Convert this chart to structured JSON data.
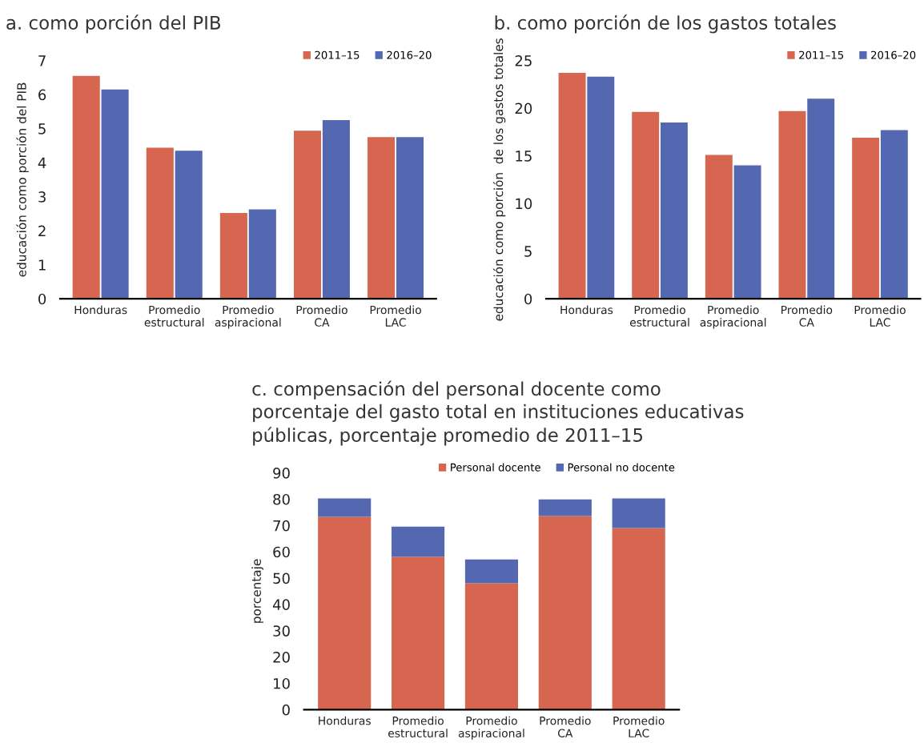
{
  "chart_data": [
    {
      "type": "bar",
      "title": "a. como porción del PIB",
      "ylabel": "educación como porción del PIB",
      "categories": [
        "Honduras",
        "Promedio\nestructural",
        "Promedio\naspiracional",
        "Promedio\nCA",
        "Promedio\nLAC"
      ],
      "series": [
        {
          "name": "2011–15",
          "color": "#d6664f",
          "values": [
            6.55,
            4.44,
            2.52,
            4.94,
            4.75
          ]
        },
        {
          "name": "2016–20",
          "color": "#5368b0",
          "values": [
            6.15,
            4.35,
            2.63,
            5.25,
            4.75
          ]
        }
      ],
      "ylim": [
        0,
        7
      ],
      "yticks": [
        0,
        1,
        2,
        3,
        4,
        5,
        6,
        7
      ],
      "grid": false,
      "legend": "top right"
    },
    {
      "type": "bar",
      "title": "b. como porción de los gastos totales",
      "ylabel": "educación como porción  de los gastos totales",
      "categories": [
        "Honduras",
        "Promedio\nestructural",
        "Promedio\naspiracional",
        "Promedio\nCA",
        "Promedio\nLAC"
      ],
      "series": [
        {
          "name": "2011–15",
          "color": "#d6664f",
          "values": [
            23.7,
            19.6,
            15.1,
            19.7,
            16.9
          ]
        },
        {
          "name": "2016–20",
          "color": "#5368b0",
          "values": [
            23.3,
            18.5,
            14.0,
            21.0,
            17.7
          ]
        }
      ],
      "ylim": [
        0,
        25
      ],
      "yticks": [
        0,
        5,
        10,
        15,
        20,
        25
      ],
      "grid": false,
      "legend": "top right"
    },
    {
      "type": "bar",
      "stacked": true,
      "title": "c. compensación del personal docente como\nporcentaje del gasto total en instituciones educativas\npúblicas, porcentaje promedio de 2011–15",
      "ylabel": "porcentaje",
      "categories": [
        "Honduras",
        "Promedio\nestructural",
        "Promedio\naspiracional",
        "Promedio\nCA",
        "Promedio\nLAC"
      ],
      "series": [
        {
          "name": "Personal docente",
          "color": "#d6664f",
          "values": [
            73.3,
            58.1,
            48.0,
            73.6,
            69.0
          ]
        },
        {
          "name": "Personal no docente",
          "color": "#5368b0",
          "values": [
            7.0,
            11.5,
            9.1,
            6.3,
            11.3
          ]
        }
      ],
      "ylim": [
        0,
        90
      ],
      "yticks": [
        0,
        10,
        20,
        30,
        40,
        50,
        60,
        70,
        80,
        90
      ],
      "grid": false,
      "legend": "top right"
    }
  ]
}
